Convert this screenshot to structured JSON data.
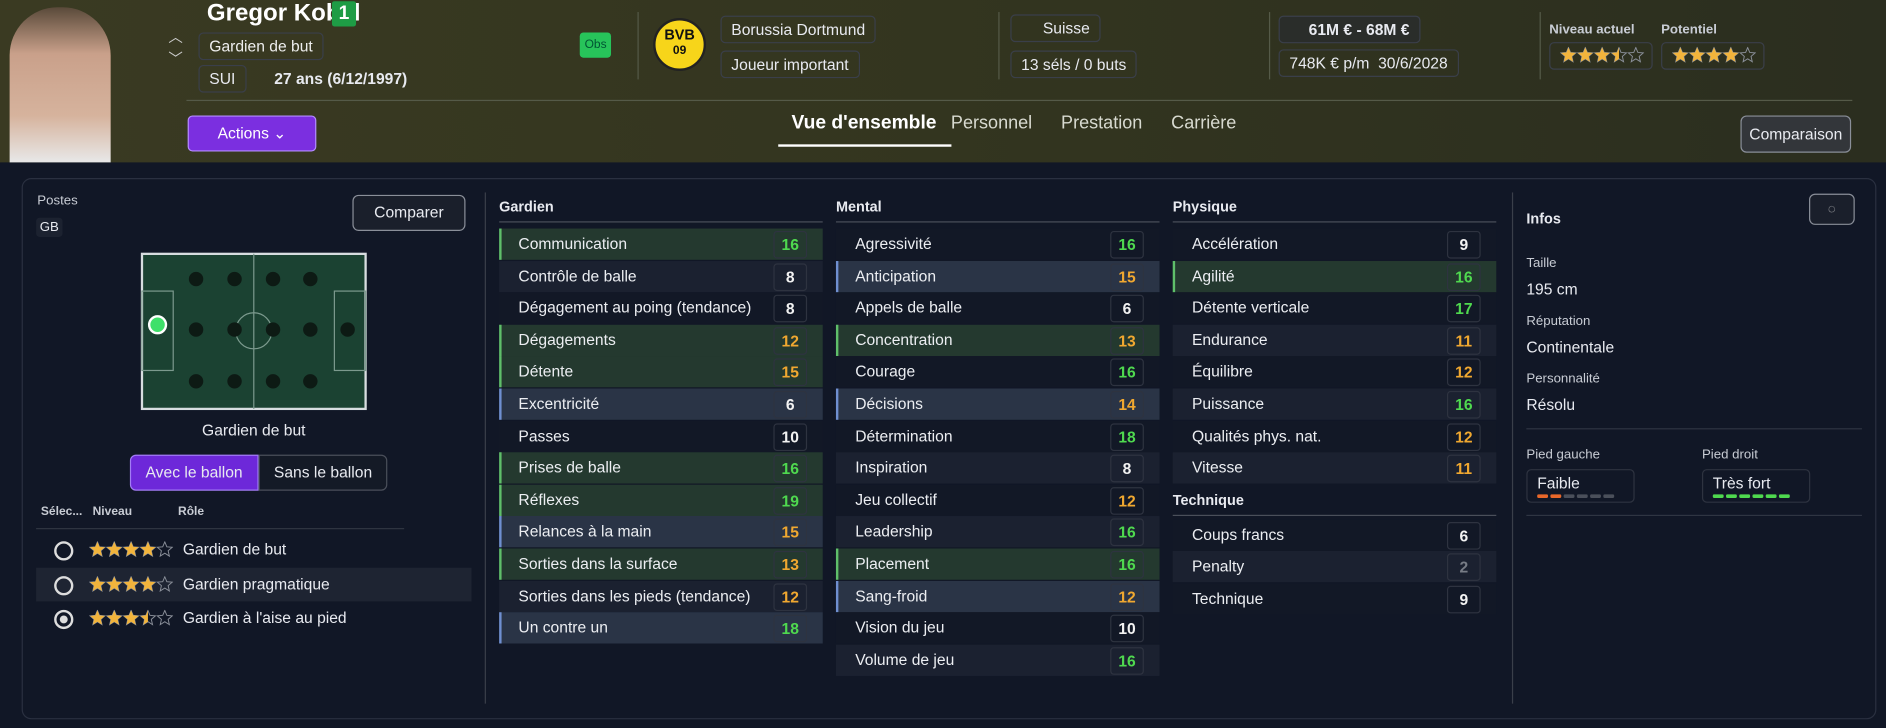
{
  "header": {
    "name": "Gregor Kobel",
    "number": "1",
    "position": "Gardien de but",
    "nation_code": "SUI",
    "age": "27 ans (6/12/1997)",
    "scout_badge": "Obs",
    "club_logo": {
      "top": "BVB",
      "bottom": "09"
    },
    "club": "Borussia Dortmund",
    "squad_status": "Joueur important",
    "nationality": "Suisse",
    "caps": "13 séls / 0 buts",
    "value": "61M € - 68M €",
    "wage": "748K € p/m",
    "contract_end": "30/6/2028",
    "current_ability": {
      "label": "Niveau actuel",
      "stars": 3.5
    },
    "potential_ability": {
      "label": "Potentiel",
      "stars": 4
    },
    "actions": "Actions",
    "tabs": {
      "items": [
        "Vue d'ensemble",
        "Personnel",
        "Prestation",
        "Carrière"
      ],
      "active": 0
    },
    "compare": "Comparaison"
  },
  "positions": {
    "label": "Postes",
    "code": "GB",
    "compare": "Comparer",
    "position_name": "Gardien de but",
    "toggle": {
      "items": [
        "Avec le ballon",
        "Sans le ballon"
      ],
      "active": 0
    },
    "role_headers": [
      "Sélec...",
      "Niveau",
      "Rôle"
    ],
    "roles": [
      {
        "name": "Gardien de but",
        "stars": 4,
        "selected": false
      },
      {
        "name": "Gardien pragmatique",
        "stars": 4,
        "selected": false
      },
      {
        "name": "Gardien à l'aise au pied",
        "stars": 3.5,
        "selected": true
      }
    ]
  },
  "attributes": {
    "columns": [
      [
        {
          "title": "Gardien",
          "items": [
            {
              "name": "Communication",
              "value": 16,
              "emphasis": "primary"
            },
            {
              "name": "Contrôle de balle",
              "value": 8
            },
            {
              "name": "Dégagement au poing (tendance)",
              "value": 8
            },
            {
              "name": "Dégagements",
              "value": 12,
              "emphasis": "primary"
            },
            {
              "name": "Détente",
              "value": 15,
              "emphasis": "primary"
            },
            {
              "name": "Excentricité",
              "value": 6,
              "emphasis": "secondary"
            },
            {
              "name": "Passes",
              "value": 10
            },
            {
              "name": "Prises de balle",
              "value": 16,
              "emphasis": "primary"
            },
            {
              "name": "Réflexes",
              "value": 19,
              "emphasis": "primary"
            },
            {
              "name": "Relances à la main",
              "value": 15,
              "emphasis": "secondary"
            },
            {
              "name": "Sorties dans la surface",
              "value": 13,
              "emphasis": "primary"
            },
            {
              "name": "Sorties dans les pieds (tendance)",
              "value": 12
            },
            {
              "name": "Un contre un",
              "value": 18,
              "emphasis": "secondary"
            }
          ]
        }
      ],
      [
        {
          "title": "Mental",
          "items": [
            {
              "name": "Agressivité",
              "value": 16
            },
            {
              "name": "Anticipation",
              "value": 15,
              "emphasis": "secondary"
            },
            {
              "name": "Appels de balle",
              "value": 6
            },
            {
              "name": "Concentration",
              "value": 13,
              "emphasis": "primary"
            },
            {
              "name": "Courage",
              "value": 16
            },
            {
              "name": "Décisions",
              "value": 14,
              "emphasis": "secondary"
            },
            {
              "name": "Détermination",
              "value": 18
            },
            {
              "name": "Inspiration",
              "value": 8
            },
            {
              "name": "Jeu collectif",
              "value": 12
            },
            {
              "name": "Leadership",
              "value": 16
            },
            {
              "name": "Placement",
              "value": 16,
              "emphasis": "primary"
            },
            {
              "name": "Sang-froid",
              "value": 12,
              "emphasis": "secondary"
            },
            {
              "name": "Vision du jeu",
              "value": 10
            },
            {
              "name": "Volume de jeu",
              "value": 16
            }
          ]
        }
      ],
      [
        {
          "title": "Physique",
          "items": [
            {
              "name": "Accélération",
              "value": 9
            },
            {
              "name": "Agilité",
              "value": 16,
              "emphasis": "primary"
            },
            {
              "name": "Détente verticale",
              "value": 17
            },
            {
              "name": "Endurance",
              "value": 11
            },
            {
              "name": "Équilibre",
              "value": 12
            },
            {
              "name": "Puissance",
              "value": 16
            },
            {
              "name": "Qualités phys. nat.",
              "value": 12
            },
            {
              "name": "Vitesse",
              "value": 11
            }
          ]
        },
        {
          "title": "Technique",
          "items": [
            {
              "name": "Coups francs",
              "value": 6
            },
            {
              "name": "Penalty",
              "value": 2
            },
            {
              "name": "Technique",
              "value": 9
            }
          ]
        }
      ]
    ]
  },
  "infos": {
    "title": "Infos",
    "fields": [
      {
        "label": "Taille",
        "value": "195 cm"
      },
      {
        "label": "Réputation",
        "value": "Continentale"
      },
      {
        "label": "Personnalité",
        "value": "Résolu"
      }
    ],
    "feet": [
      {
        "label": "Pied gauche",
        "value": "Faible",
        "level": 2
      },
      {
        "label": "Pied droit",
        "value": "Très fort",
        "level": 6
      }
    ]
  }
}
